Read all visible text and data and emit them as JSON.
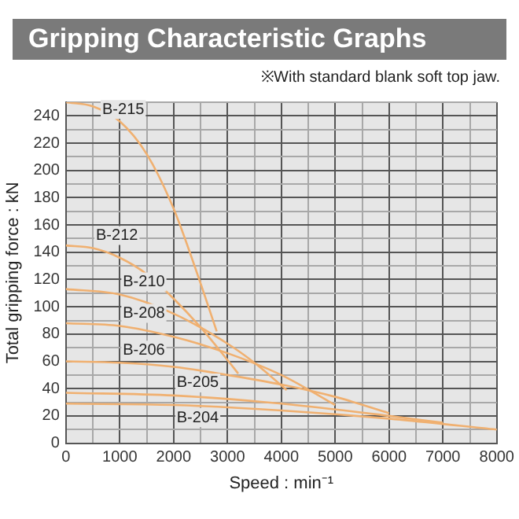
{
  "chart_data": {
    "type": "line",
    "title": "Gripping Characteristic Graphs",
    "subtitle": "※With standard blank soft top jaw.",
    "xlabel": "Speed : min⁻¹",
    "ylabel": "Total gripping force : kN",
    "xlim": [
      0,
      8000
    ],
    "ylim": [
      0,
      250
    ],
    "xticks": [
      0,
      {
        "value": 500,
        "label": null
      },
      1000,
      {
        "value": 1500,
        "label": null
      },
      2000,
      {
        "value": 2500,
        "label": null
      },
      3000,
      {
        "value": 3500,
        "label": null
      },
      4000,
      {
        "value": 4500,
        "label": null
      },
      5000,
      {
        "value": 5500,
        "label": null
      },
      6000,
      {
        "value": 6500,
        "label": null
      },
      7000,
      {
        "value": 7500,
        "label": null
      },
      8000
    ],
    "yticks": [
      0,
      {
        "value": 10,
        "label": null
      },
      20,
      {
        "value": 30,
        "label": null
      },
      40,
      {
        "value": 50,
        "label": null
      },
      60,
      {
        "value": 70,
        "label": null
      },
      80,
      {
        "value": 90,
        "label": null
      },
      100,
      {
        "value": 110,
        "label": null
      },
      120,
      {
        "value": 130,
        "label": null
      },
      140,
      {
        "value": 150,
        "label": null
      },
      160,
      {
        "value": 170,
        "label": null
      },
      180,
      {
        "value": 190,
        "label": null
      },
      200,
      {
        "value": 210,
        "label": null
      },
      220,
      {
        "value": 230,
        "label": null
      },
      240,
      {
        "value": 250,
        "label": null
      }
    ],
    "grid": true,
    "legend": false,
    "marker": "none",
    "line_style": "solid",
    "series": [
      {
        "name": "B-215",
        "color": "#f0b070",
        "x": [
          0,
          500,
          1000,
          1500,
          2000,
          2450,
          2800
        ],
        "values": [
          250,
          247,
          236,
          212,
          172,
          123,
          82
        ]
      },
      {
        "name": "B-212",
        "color": "#f0b070",
        "x": [
          0,
          500,
          1000,
          1500,
          2000,
          2500,
          3000,
          3200
        ],
        "values": [
          145,
          143,
          136,
          124,
          106,
          85,
          61,
          51
        ]
      },
      {
        "name": "B-210",
        "color": "#f0b070",
        "x": [
          0,
          1000,
          2000,
          3000,
          3500,
          4100
        ],
        "values": [
          113,
          109,
          95,
          73,
          59,
          39
        ]
      },
      {
        "name": "B-208",
        "color": "#f0b070",
        "x": [
          0,
          1000,
          2000,
          3000,
          4000,
          5000
        ],
        "values": [
          88,
          86,
          78,
          66,
          50,
          28
        ]
      },
      {
        "name": "B-206",
        "color": "#f0b070",
        "x": [
          0,
          1000,
          2000,
          3000,
          4000,
          5000,
          6000
        ],
        "values": [
          60,
          59,
          56,
          50,
          43,
          34,
          22
        ]
      },
      {
        "name": "B-205",
        "color": "#f0b070",
        "x": [
          0,
          2000,
          4000,
          6000,
          7000
        ],
        "values": [
          37,
          35,
          29,
          20,
          15
        ]
      },
      {
        "name": "B-204",
        "color": "#f0b070",
        "x": [
          0,
          2000,
          4000,
          6000,
          8000
        ],
        "values": [
          29,
          28,
          24,
          18,
          10
        ]
      }
    ]
  }
}
